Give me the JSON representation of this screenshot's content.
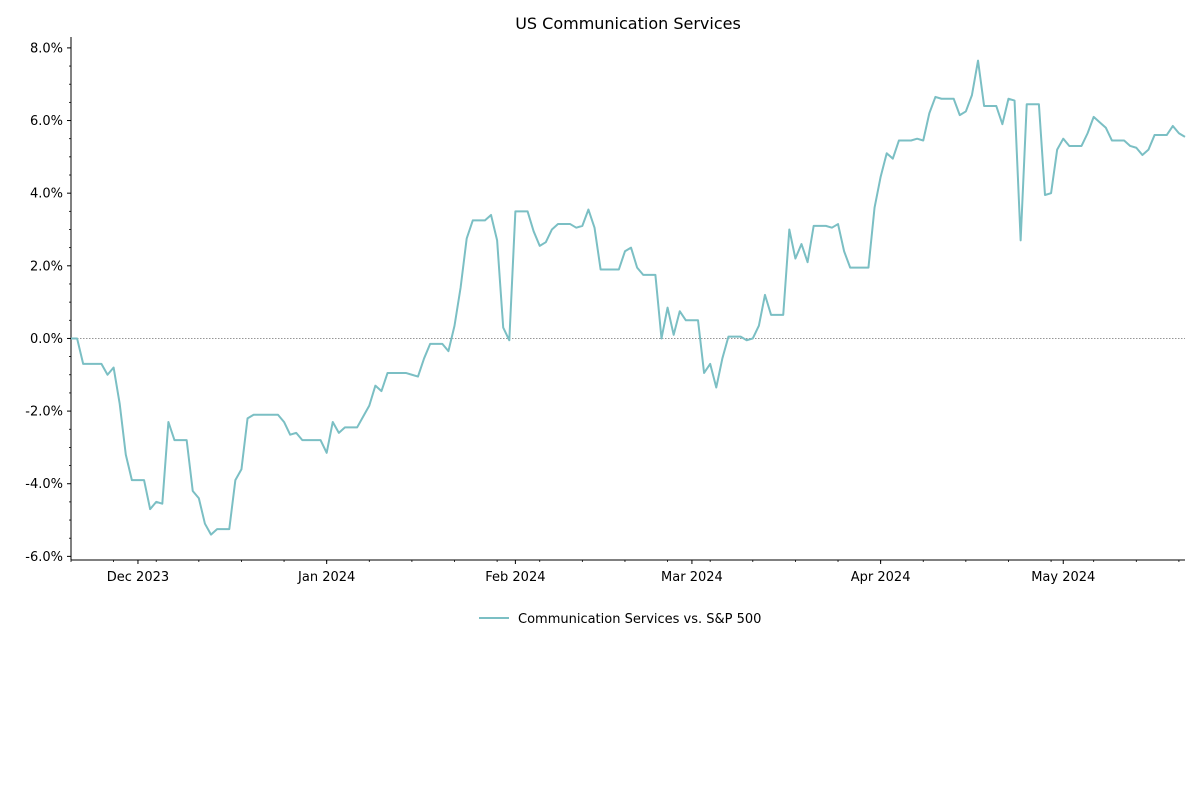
{
  "chart_data": {
    "type": "line",
    "title": "US Communication Services",
    "xlabel": "",
    "ylabel": "",
    "x_range": [
      "2023-11-20",
      "2024-05-21"
    ],
    "ylim": [
      -6.1,
      8.3
    ],
    "y_ticks": [
      -6.0,
      -4.0,
      -2.0,
      0.0,
      2.0,
      4.0,
      6.0,
      8.0
    ],
    "y_tick_labels": [
      "-6.0%",
      "-4.0%",
      "-2.0%",
      "0.0%",
      "2.0%",
      "4.0%",
      "6.0%",
      "8.0%"
    ],
    "x_ticks": [
      "2023-12-01",
      "2024-01-01",
      "2024-02-01",
      "2024-03-01",
      "2024-04-01",
      "2024-05-01"
    ],
    "x_tick_labels": [
      "Dec 2023",
      "Jan 2024",
      "Feb 2024",
      "Mar 2024",
      "Apr 2024",
      "May 2024"
    ],
    "reference_line": {
      "y": 0,
      "style": "dotted",
      "color": "#888888"
    },
    "grid": false,
    "legend_position": "bottom-center",
    "series": [
      {
        "name": "Communication Services vs. S&P 500",
        "color": "#7bbfc4",
        "points": [
          [
            "2023-11-20",
            0.0
          ],
          [
            "2023-11-21",
            0.0
          ],
          [
            "2023-11-22",
            -0.7
          ],
          [
            "2023-11-24",
            -0.7
          ],
          [
            "2023-11-25",
            -0.7
          ],
          [
            "2023-11-26",
            -1.0
          ],
          [
            "2023-11-27",
            -0.8
          ],
          [
            "2023-11-28",
            -1.8
          ],
          [
            "2023-11-29",
            -3.2
          ],
          [
            "2023-11-30",
            -3.9
          ],
          [
            "2023-12-01",
            -3.9
          ],
          [
            "2023-12-02",
            -3.9
          ],
          [
            "2023-12-03",
            -4.7
          ],
          [
            "2023-12-04",
            -4.5
          ],
          [
            "2023-12-05",
            -4.55
          ],
          [
            "2023-12-06",
            -2.3
          ],
          [
            "2023-12-07",
            -2.8
          ],
          [
            "2023-12-08",
            -2.8
          ],
          [
            "2023-12-09",
            -2.8
          ],
          [
            "2023-12-10",
            -4.2
          ],
          [
            "2023-12-11",
            -4.4
          ],
          [
            "2023-12-12",
            -5.1
          ],
          [
            "2023-12-13",
            -5.4
          ],
          [
            "2023-12-14",
            -5.25
          ],
          [
            "2023-12-15",
            -5.25
          ],
          [
            "2023-12-16",
            -5.25
          ],
          [
            "2023-12-17",
            -3.9
          ],
          [
            "2023-12-18",
            -3.6
          ],
          [
            "2023-12-19",
            -2.2
          ],
          [
            "2023-12-20",
            -2.1
          ],
          [
            "2023-12-21",
            -2.1
          ],
          [
            "2023-12-22",
            -2.1
          ],
          [
            "2023-12-23",
            -2.1
          ],
          [
            "2023-12-24",
            -2.1
          ],
          [
            "2023-12-25",
            -2.3
          ],
          [
            "2023-12-26",
            -2.65
          ],
          [
            "2023-12-27",
            -2.6
          ],
          [
            "2023-12-28",
            -2.8
          ],
          [
            "2023-12-29",
            -2.8
          ],
          [
            "2023-12-30",
            -2.8
          ],
          [
            "2023-12-31",
            -2.8
          ],
          [
            "2024-01-01",
            -3.15
          ],
          [
            "2024-01-02",
            -2.3
          ],
          [
            "2024-01-03",
            -2.6
          ],
          [
            "2024-01-04",
            -2.45
          ],
          [
            "2024-01-05",
            -2.45
          ],
          [
            "2024-01-06",
            -2.45
          ],
          [
            "2024-01-07",
            -2.15
          ],
          [
            "2024-01-08",
            -1.85
          ],
          [
            "2024-01-09",
            -1.3
          ],
          [
            "2024-01-10",
            -1.45
          ],
          [
            "2024-01-11",
            -0.95
          ],
          [
            "2024-01-12",
            -0.95
          ],
          [
            "2024-01-13",
            -0.95
          ],
          [
            "2024-01-14",
            -0.95
          ],
          [
            "2024-01-15",
            -1.0
          ],
          [
            "2024-01-16",
            -1.05
          ],
          [
            "2024-01-17",
            -0.55
          ],
          [
            "2024-01-18",
            -0.15
          ],
          [
            "2024-01-19",
            -0.15
          ],
          [
            "2024-01-20",
            -0.15
          ],
          [
            "2024-01-21",
            -0.35
          ],
          [
            "2024-01-22",
            0.35
          ],
          [
            "2024-01-23",
            1.4
          ],
          [
            "2024-01-24",
            2.75
          ],
          [
            "2024-01-25",
            3.25
          ],
          [
            "2024-01-26",
            3.25
          ],
          [
            "2024-01-27",
            3.25
          ],
          [
            "2024-01-28",
            3.4
          ],
          [
            "2024-01-29",
            2.7
          ],
          [
            "2024-01-30",
            0.3
          ],
          [
            "2024-01-31",
            -0.05
          ],
          [
            "2024-02-01",
            3.5
          ],
          [
            "2024-02-02",
            3.5
          ],
          [
            "2024-02-03",
            3.5
          ],
          [
            "2024-02-04",
            2.95
          ],
          [
            "2024-02-05",
            2.55
          ],
          [
            "2024-02-06",
            2.65
          ],
          [
            "2024-02-07",
            3.0
          ],
          [
            "2024-02-08",
            3.15
          ],
          [
            "2024-02-09",
            3.15
          ],
          [
            "2024-02-10",
            3.15
          ],
          [
            "2024-02-11",
            3.05
          ],
          [
            "2024-02-12",
            3.1
          ],
          [
            "2024-02-13",
            3.55
          ],
          [
            "2024-02-14",
            3.05
          ],
          [
            "2024-02-15",
            1.9
          ],
          [
            "2024-02-16",
            1.9
          ],
          [
            "2024-02-17",
            1.9
          ],
          [
            "2024-02-18",
            1.9
          ],
          [
            "2024-02-19",
            2.4
          ],
          [
            "2024-02-20",
            2.5
          ],
          [
            "2024-02-21",
            1.95
          ],
          [
            "2024-02-22",
            1.75
          ],
          [
            "2024-02-23",
            1.75
          ],
          [
            "2024-02-24",
            1.75
          ],
          [
            "2024-02-25",
            0.0
          ],
          [
            "2024-02-26",
            0.85
          ],
          [
            "2024-02-27",
            0.1
          ],
          [
            "2024-02-28",
            0.75
          ],
          [
            "2024-02-29",
            0.5
          ],
          [
            "2024-03-01",
            0.5
          ],
          [
            "2024-03-02",
            0.5
          ],
          [
            "2024-03-03",
            -0.95
          ],
          [
            "2024-03-04",
            -0.7
          ],
          [
            "2024-03-05",
            -1.35
          ],
          [
            "2024-03-06",
            -0.55
          ],
          [
            "2024-03-07",
            0.05
          ],
          [
            "2024-03-08",
            0.05
          ],
          [
            "2024-03-09",
            0.05
          ],
          [
            "2024-03-10",
            -0.05
          ],
          [
            "2024-03-11",
            0.0
          ],
          [
            "2024-03-12",
            0.35
          ],
          [
            "2024-03-13",
            1.2
          ],
          [
            "2024-03-14",
            0.65
          ],
          [
            "2024-03-15",
            0.65
          ],
          [
            "2024-03-16",
            0.65
          ],
          [
            "2024-03-17",
            3.0
          ],
          [
            "2024-03-18",
            2.2
          ],
          [
            "2024-03-19",
            2.6
          ],
          [
            "2024-03-20",
            2.1
          ],
          [
            "2024-03-21",
            3.1
          ],
          [
            "2024-03-22",
            3.1
          ],
          [
            "2024-03-23",
            3.1
          ],
          [
            "2024-03-24",
            3.05
          ],
          [
            "2024-03-25",
            3.15
          ],
          [
            "2024-03-26",
            2.4
          ],
          [
            "2024-03-27",
            1.95
          ],
          [
            "2024-03-28",
            1.95
          ],
          [
            "2024-03-29",
            1.95
          ],
          [
            "2024-03-30",
            1.95
          ],
          [
            "2024-03-31",
            3.6
          ],
          [
            "2024-04-01",
            4.45
          ],
          [
            "2024-04-02",
            5.1
          ],
          [
            "2024-04-03",
            4.95
          ],
          [
            "2024-04-04",
            5.45
          ],
          [
            "2024-04-05",
            5.45
          ],
          [
            "2024-04-06",
            5.45
          ],
          [
            "2024-04-07",
            5.5
          ],
          [
            "2024-04-08",
            5.45
          ],
          [
            "2024-04-09",
            6.2
          ],
          [
            "2024-04-10",
            6.65
          ],
          [
            "2024-04-11",
            6.6
          ],
          [
            "2024-04-12",
            6.6
          ],
          [
            "2024-04-13",
            6.6
          ],
          [
            "2024-04-14",
            6.15
          ],
          [
            "2024-04-15",
            6.25
          ],
          [
            "2024-04-16",
            6.7
          ],
          [
            "2024-04-17",
            7.65
          ],
          [
            "2024-04-18",
            6.4
          ],
          [
            "2024-04-19",
            6.4
          ],
          [
            "2024-04-20",
            6.4
          ],
          [
            "2024-04-21",
            5.9
          ],
          [
            "2024-04-22",
            6.6
          ],
          [
            "2024-04-23",
            6.55
          ],
          [
            "2024-04-24",
            2.7
          ],
          [
            "2024-04-25",
            6.45
          ],
          [
            "2024-04-26",
            6.45
          ],
          [
            "2024-04-27",
            6.45
          ],
          [
            "2024-04-28",
            3.95
          ],
          [
            "2024-04-29",
            4.0
          ],
          [
            "2024-04-30",
            5.2
          ],
          [
            "2024-05-01",
            5.5
          ],
          [
            "2024-05-02",
            5.3
          ],
          [
            "2024-05-03",
            5.3
          ],
          [
            "2024-05-04",
            5.3
          ],
          [
            "2024-05-05",
            5.65
          ],
          [
            "2024-05-06",
            6.1
          ],
          [
            "2024-05-07",
            5.95
          ],
          [
            "2024-05-08",
            5.8
          ],
          [
            "2024-05-09",
            5.45
          ],
          [
            "2024-05-10",
            5.45
          ],
          [
            "2024-05-11",
            5.45
          ],
          [
            "2024-05-12",
            5.3
          ],
          [
            "2024-05-13",
            5.25
          ],
          [
            "2024-05-14",
            5.05
          ],
          [
            "2024-05-15",
            5.2
          ],
          [
            "2024-05-16",
            5.6
          ],
          [
            "2024-05-17",
            5.6
          ],
          [
            "2024-05-18",
            5.6
          ],
          [
            "2024-05-19",
            5.85
          ],
          [
            "2024-05-20",
            5.65
          ],
          [
            "2024-05-21",
            5.55
          ]
        ]
      }
    ]
  }
}
